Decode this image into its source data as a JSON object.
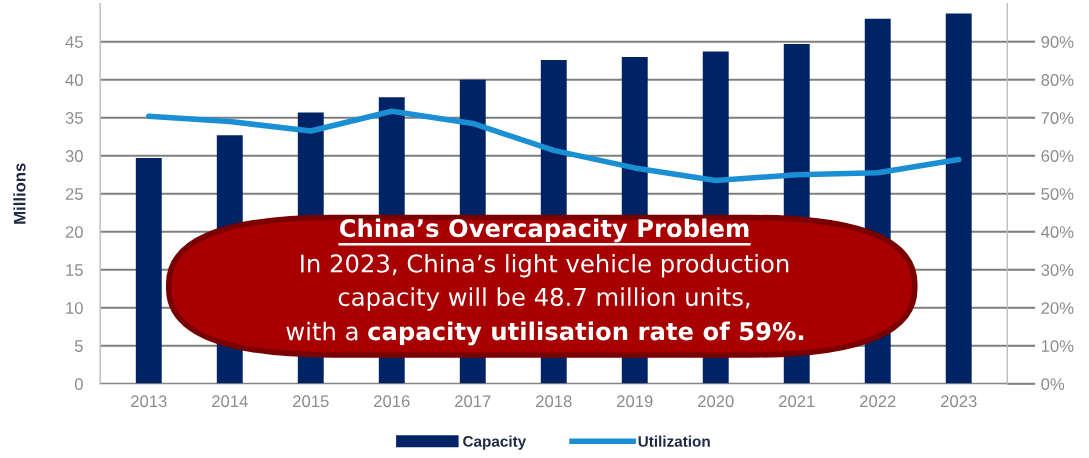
{
  "chart_data": {
    "type": "bar",
    "ylabel": "Millions",
    "categories": [
      "2013",
      "2014",
      "2015",
      "2016",
      "2017",
      "2018",
      "2019",
      "2020",
      "2021",
      "2022",
      "2023"
    ],
    "series": [
      {
        "name": "Capacity",
        "color": "#002366",
        "values": [
          29.7,
          32.7,
          35.7,
          37.7,
          40.0,
          42.6,
          43.0,
          43.7,
          44.7,
          48.0,
          48.7
        ]
      },
      {
        "name": "Utilization",
        "type": "line",
        "axis": "y2",
        "color": "#1b8fd4",
        "values": [
          70.4,
          69.0,
          66.5,
          71.7,
          68.5,
          61.4,
          56.8,
          53.5,
          55.0,
          55.5,
          59
        ]
      }
    ],
    "ylim": [
      0,
      50
    ],
    "yticks": [
      0,
      5,
      10,
      15,
      20,
      25,
      30,
      35,
      40,
      45
    ],
    "y2lim": [
      0,
      100
    ],
    "y2ticks": [
      {
        "value": 0,
        "label": "0%"
      },
      {
        "value": 10,
        "label": "10%"
      },
      {
        "value": 20,
        "label": "20%"
      },
      {
        "value": 30,
        "label": "30%"
      },
      {
        "value": 40,
        "label": "40%"
      },
      {
        "value": 50,
        "label": "50%"
      },
      {
        "value": 60,
        "label": "60%"
      },
      {
        "value": 70,
        "label": "70%"
      },
      {
        "value": 80,
        "label": "80%"
      },
      {
        "value": 90,
        "label": "90%"
      }
    ],
    "grid": "y",
    "legend": "bottom",
    "marker": "none",
    "line_style": "solid",
    "annotations": [
      "China’s Overcapacity Problem",
      "In 2023, China’s light vehicle production",
      "capacity will be 48.7 million units,",
      "with a",
      "capacity utilisation rate of 59%."
    ]
  }
}
